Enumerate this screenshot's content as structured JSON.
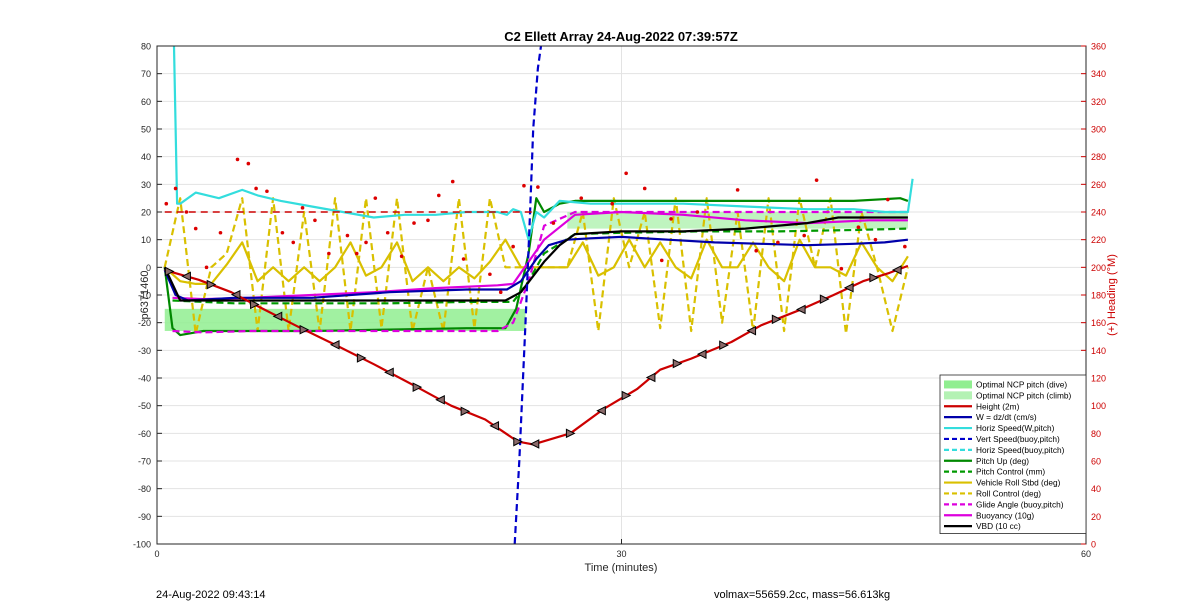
{
  "chart_data": {
    "type": "line",
    "title": "C2 Ellett Array 24-Aug-2022 07:39:57Z",
    "xlabel": "Time (minutes)",
    "ylabel": "p6371460",
    "y2label": "(+) Heading (°M)",
    "xlim": [
      0,
      60
    ],
    "ylim": [
      -100,
      80
    ],
    "y2lim": [
      0,
      360
    ],
    "xticks": [
      "0",
      "30",
      "60"
    ],
    "yticks": [
      "80",
      "70",
      "60",
      "50",
      "40",
      "30",
      "20",
      "10",
      "0",
      "-10",
      "-20",
      "-30",
      "-40",
      "-50",
      "-60",
      "-70",
      "-80",
      "-90",
      "-100"
    ],
    "y2ticks": [
      "360",
      "340",
      "320",
      "300",
      "280",
      "260",
      "240",
      "220",
      "200",
      "180",
      "160",
      "140",
      "120",
      "100",
      "80",
      "60",
      "40",
      "20",
      "0"
    ],
    "grid": true,
    "legend_position": "bottom-right",
    "legend": [
      {
        "label": "Optimal NCP pitch (dive)",
        "color": "#90EE90",
        "style": "patch"
      },
      {
        "label": "Optimal NCP pitch (climb)",
        "color": "#b4f2b4",
        "style": "patch"
      },
      {
        "label": "Height (2m)",
        "color": "#cc0000",
        "style": "solid"
      },
      {
        "label": "W = dz/dt (cm/s)",
        "color": "#0000aa",
        "style": "solid"
      },
      {
        "label": "Horiz Speed(W,pitch)",
        "color": "#33dddd",
        "style": "solid"
      },
      {
        "label": "Vert Speed(buoy,pitch)",
        "color": "#0000cc",
        "style": "dashed"
      },
      {
        "label": "Horiz Speed(buoy,pitch)",
        "color": "#33dddd",
        "style": "dashed"
      },
      {
        "label": "Pitch Up (deg)",
        "color": "#008800",
        "style": "solid"
      },
      {
        "label": "Pitch Control (mm)",
        "color": "#009900",
        "style": "dashed"
      },
      {
        "label": "Vehicle Roll Stbd (deg)",
        "color": "#d9c000",
        "style": "solid"
      },
      {
        "label": "Roll Control (deg)",
        "color": "#d9c000",
        "style": "dashed"
      },
      {
        "label": "Glide Angle (buoy,pitch)",
        "color": "#dd00dd",
        "style": "dashed"
      },
      {
        "label": "Buoyancy (10g)",
        "color": "#dd00dd",
        "style": "solid"
      },
      {
        "label": "VBD (10 cc)",
        "color": "#000000",
        "style": "solid"
      }
    ],
    "series": [
      {
        "name": "Height (2m)",
        "x": [
          0.5,
          2.7,
          4.8,
          6.5,
          9.3,
          11.5,
          14,
          16.7,
          19,
          21.2,
          23.3,
          24.3,
          26.7,
          28.9,
          31,
          32.5,
          34.5,
          37.1,
          39,
          41.7,
          43.7,
          45.6,
          47.3,
          48.5
        ],
        "y": [
          -1,
          -4.5,
          -9,
          -14,
          -22,
          -28,
          -35,
          -43,
          -50,
          -55,
          -63,
          -64,
          -60,
          -51,
          -44,
          -37,
          -33,
          -27,
          -21,
          -15,
          -10,
          -5,
          -2,
          0.5
        ]
      },
      {
        "name": "W = dz/dt (cm/s)",
        "x": [
          0.5,
          1.2,
          2,
          5,
          10,
          15,
          20,
          22.6,
          23.5,
          24.5,
          25.3,
          26.5,
          28,
          30,
          33,
          36,
          39,
          42,
          45,
          47,
          48.5
        ],
        "y": [
          -1,
          -10,
          -12,
          -11,
          -11,
          -9,
          -8,
          -8,
          -5,
          3,
          8,
          10,
          10.5,
          11,
          10,
          9,
          8.5,
          8,
          8.5,
          9,
          10
        ]
      },
      {
        "name": "Horiz Speed(W,pitch)",
        "x": [
          1.1,
          1.3,
          1.5,
          2.5,
          4,
          5.5,
          6.5,
          8,
          10,
          12,
          14,
          16,
          18,
          20,
          22,
          22.6,
          23,
          23.5,
          24,
          24.5,
          25,
          26,
          28,
          30,
          34,
          38,
          42,
          45,
          47,
          48.5,
          48.8
        ],
        "y": [
          80,
          23,
          23,
          27,
          25,
          28,
          26,
          24,
          22,
          20,
          18,
          19,
          19,
          20,
          20,
          19,
          21,
          20,
          10,
          20,
          18,
          24,
          23,
          23,
          23,
          22,
          21,
          21,
          20,
          20,
          32
        ]
      },
      {
        "name": "Vert Speed(buoy,pitch)",
        "x": [
          23.1,
          23.4,
          23.8,
          24.1,
          24.3,
          24.6,
          24.8
        ],
        "y": [
          -100,
          -70,
          -20,
          20,
          50,
          72,
          80
        ]
      },
      {
        "name": "Pitch Up (deg)",
        "x": [
          0.5,
          1.0,
          1.5,
          3,
          10,
          15,
          20,
          22.5,
          23.2,
          24,
          24.5,
          25,
          26,
          27,
          30,
          35,
          40,
          45,
          48,
          48.5
        ],
        "y": [
          0,
          -22,
          -24.5,
          -23,
          -23,
          -22.5,
          -22,
          -22,
          -15,
          5,
          25,
          20,
          23,
          24,
          24,
          24,
          24,
          24,
          25,
          24
        ]
      },
      {
        "name": "Pitch Control (mm)",
        "x": [
          1,
          5,
          10,
          15,
          20,
          23,
          24,
          25,
          27,
          30,
          35,
          40,
          45,
          48.5
        ],
        "y": [
          -12,
          -13,
          -13,
          -13,
          -12.5,
          -12.5,
          -5,
          5,
          12,
          12.5,
          13,
          13,
          13.5,
          14
        ]
      },
      {
        "name": "Buoyancy (10g)",
        "x": [
          1,
          3,
          6,
          10,
          14,
          18,
          22,
          23,
          25,
          27,
          30,
          34,
          38,
          42,
          46,
          48.5
        ],
        "y": [
          -11,
          -11.5,
          -11,
          -10,
          -9,
          -7.5,
          -6.5,
          -6,
          10,
          19,
          20,
          19,
          17,
          16,
          17,
          17
        ]
      },
      {
        "name": "Glide Angle (buoy,pitch)",
        "x": [
          1,
          3,
          6,
          10,
          14,
          18,
          22,
          23,
          24,
          25,
          27,
          30,
          35,
          40,
          45,
          48.5
        ],
        "y": [
          -23,
          -23.5,
          -23,
          -23,
          -23,
          -23,
          -23,
          -20,
          -5,
          15,
          20,
          20,
          20,
          20,
          20,
          20
        ]
      },
      {
        "name": "VBD (10 cc)",
        "x": [
          0.5,
          1.5,
          4,
          8,
          12,
          16,
          20,
          22.5,
          23.5,
          25,
          26,
          27,
          30,
          34,
          38,
          42,
          44,
          48.5
        ],
        "y": [
          0,
          -12,
          -12,
          -12,
          -12,
          -12,
          -12,
          -12,
          -9,
          2,
          8,
          12,
          13,
          13,
          14,
          16,
          18,
          18
        ]
      },
      {
        "name": "Vehicle Roll Stbd (deg)",
        "x": [
          0.5,
          1.5,
          2.5,
          3.5,
          4.5,
          5.5,
          6.5,
          7.5,
          8.5,
          9.5,
          10.5,
          11.5,
          12.5,
          13.5,
          14.5,
          15.5,
          16.5,
          17.5,
          18.5,
          19.5,
          20.5,
          21.5,
          22.5,
          23.5,
          24.5,
          25.5,
          26.5,
          27.5,
          28.5,
          29.5,
          30.5,
          31.5,
          32.5,
          33.5,
          34.5,
          35.5,
          36.5,
          37.5,
          38.5,
          39.5,
          40.5,
          41.5,
          42.5,
          43.5,
          44.5,
          45.5,
          46.5,
          47.5,
          48.5
        ],
        "y": [
          0,
          -5,
          -6,
          -6,
          1,
          9,
          -5,
          0,
          -5,
          0,
          -5,
          0,
          9,
          -3,
          0,
          9,
          -5,
          0,
          -5,
          0,
          -4,
          2,
          10,
          0,
          0,
          0,
          0,
          9,
          -3,
          0,
          10,
          0,
          9,
          0,
          -4,
          10,
          0,
          0,
          9,
          0,
          -5,
          10,
          0,
          0,
          -3,
          9,
          0,
          -5,
          4
        ]
      },
      {
        "name": "Roll Control (deg)",
        "x": [
          0.5,
          1.5,
          2.5,
          3.5,
          4.5,
          5.5,
          6.5,
          7.5,
          8.5,
          9.5,
          10.5,
          11.5,
          12.5,
          13.5,
          14.5,
          15.5,
          16.5,
          17.5,
          18.5,
          19.5,
          20.5,
          21.5,
          22.5,
          23.5,
          24.5,
          25.5,
          26.5,
          27.5,
          28.5,
          29.5,
          30.5,
          31.5,
          32.5,
          33.5,
          34.5,
          35.5,
          36.5,
          37.5,
          38.5,
          39.5,
          40.5,
          41.5,
          42.5,
          43.5,
          44.5,
          45.5,
          46.5,
          47.5,
          48.5
        ],
        "y": [
          0,
          25,
          -24,
          0,
          5,
          25,
          -23,
          25,
          -23,
          20,
          -23,
          25,
          -23,
          25,
          -22,
          25,
          -23,
          0,
          -23,
          25,
          -22,
          25,
          0,
          0,
          0,
          0,
          0,
          20,
          -23,
          25,
          0,
          20,
          -22,
          25,
          -23,
          25,
          -20,
          20,
          -23,
          25,
          -23,
          25,
          0,
          25,
          -24,
          20,
          0,
          -23,
          0
        ]
      }
    ],
    "heading_series": {
      "name": "Heading (dots, right axis)",
      "target": 240,
      "x": [
        0.6,
        1.2,
        1.9,
        2.5,
        3.2,
        4.1,
        5.2,
        5.9,
        6.4,
        7.1,
        8.1,
        8.8,
        9.4,
        10.2,
        11.1,
        12.3,
        12.9,
        13.5,
        14.1,
        14.9,
        15.8,
        16.6,
        17.5,
        18.2,
        19.1,
        19.8,
        21.5,
        22.2,
        23,
        23.7,
        24.6,
        25.6,
        27.4,
        29.4,
        30.3,
        31.5,
        32.6,
        33.2,
        34.9,
        37.5,
        38.7,
        40.1,
        41.8,
        42.6,
        44.2,
        45.3,
        46.4,
        47.2,
        48.3
      ],
      "y": [
        246,
        257,
        240,
        228,
        200,
        225,
        278,
        275,
        257,
        255,
        225,
        218,
        243,
        234,
        210,
        223,
        210,
        218,
        250,
        225,
        208,
        232,
        234,
        252,
        262,
        206,
        195,
        182,
        215,
        259,
        258,
        232,
        250,
        246,
        268,
        257,
        205,
        235,
        240,
        256,
        212,
        218,
        223,
        263,
        199,
        229,
        220,
        249,
        215
      ]
    },
    "height_markers": {
      "x": [
        0.8,
        1.9,
        3.5,
        5.1,
        6.3,
        7.8,
        9.5,
        11.5,
        13.2,
        15,
        16.8,
        18.3,
        19.9,
        21.8,
        23.3,
        24.4,
        26.7,
        28.7,
        30.3,
        31.9,
        33.6,
        35.2,
        36.6,
        38.4,
        40,
        41.6,
        43.1,
        44.7,
        46.3,
        47.8
      ]
    }
  },
  "bottom_left_text": "24-Aug-2022 09:43:14",
  "bottom_right_text": "volmax=55659.2cc, mass=56.613kg"
}
